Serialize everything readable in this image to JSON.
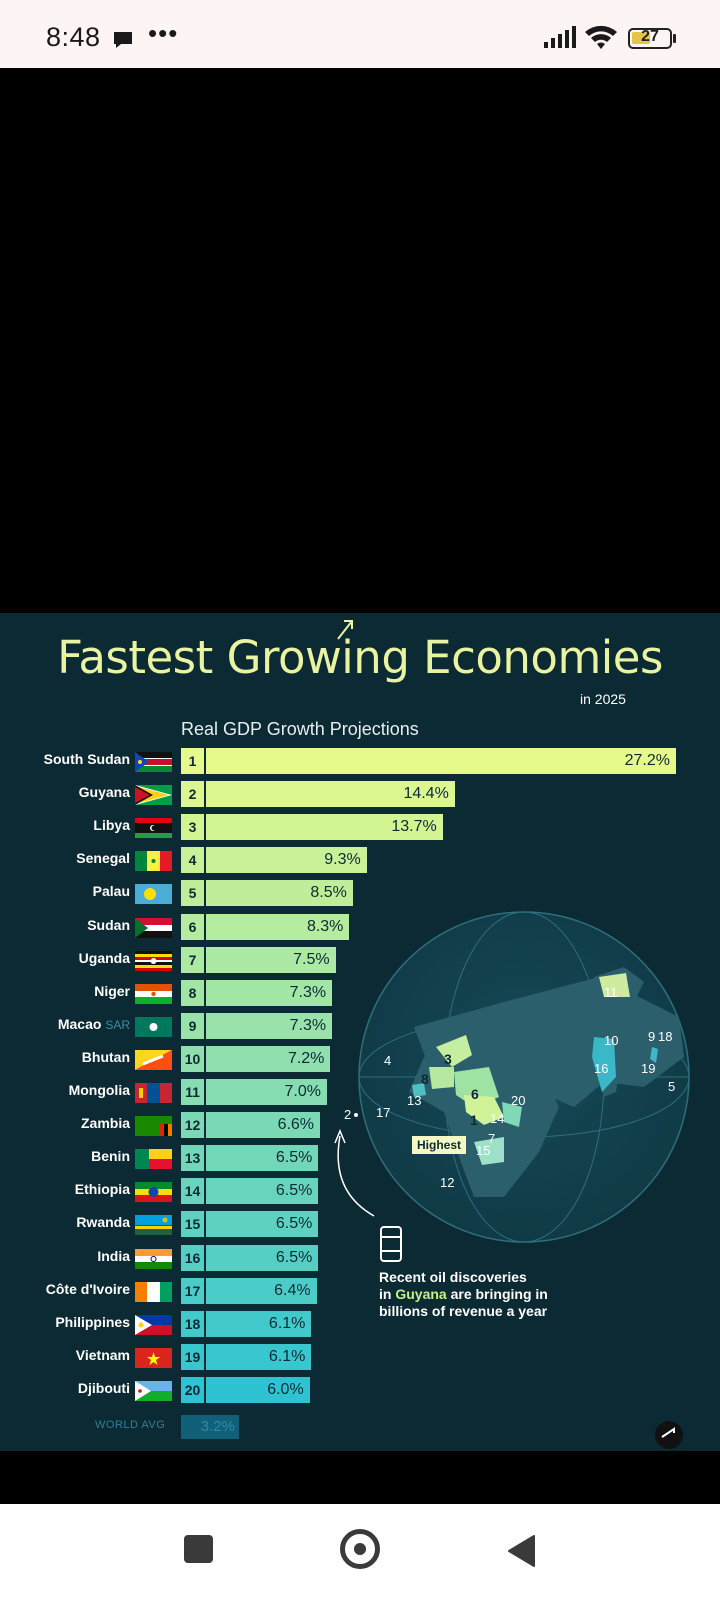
{
  "status_bar": {
    "time": "8:48",
    "more_indicator": "•••",
    "battery_level": "27"
  },
  "infographic": {
    "title": "Fastest Growing Economies",
    "subtitle": "in 2025",
    "chart_caption": "Real GDP Growth Projections",
    "highest_tag": "Highest",
    "oil_note_line1": "Recent oil discoveries",
    "oil_note_in": "in ",
    "oil_note_guyana": "Guyana",
    "oil_note_rest": " are bringing in",
    "oil_note_line3": "billions of revenue a year",
    "world_avg_label": "WORLD AVG",
    "world_avg_value": "3.2%",
    "map_labels": [
      "11",
      "10",
      "9",
      "18",
      "16",
      "19",
      "5",
      "4",
      "3",
      "8",
      "13",
      "17",
      "6",
      "20",
      "1",
      "14",
      "7",
      "15",
      "12",
      "2"
    ]
  },
  "chart_data": {
    "type": "bar",
    "title": "Fastest Growing Economies",
    "subtitle": "in 2025",
    "ylabel": "Real GDP Growth Projections",
    "categories": [
      "South Sudan",
      "Guyana",
      "Libya",
      "Senegal",
      "Palau",
      "Sudan",
      "Uganda",
      "Niger",
      "Macao SAR",
      "Bhutan",
      "Mongolia",
      "Zambia",
      "Benin",
      "Ethiopia",
      "Rwanda",
      "India",
      "Côte d'Ivoire",
      "Philippines",
      "Vietnam",
      "Djibouti"
    ],
    "values": [
      27.2,
      14.4,
      13.7,
      9.3,
      8.5,
      8.3,
      7.5,
      7.3,
      7.3,
      7.2,
      7.0,
      6.6,
      6.5,
      6.5,
      6.5,
      6.5,
      6.4,
      6.1,
      6.1,
      6.0
    ],
    "value_labels": [
      "27.2%",
      "14.4%",
      "13.7%",
      "9.3%",
      "8.5%",
      "8.3%",
      "7.5%",
      "7.3%",
      "7.3%",
      "7.2%",
      "7.0%",
      "6.6%",
      "6.5%",
      "6.5%",
      "6.5%",
      "6.5%",
      "6.4%",
      "6.1%",
      "6.1%",
      "6.0%"
    ],
    "ranks": [
      "1",
      "2",
      "3",
      "4",
      "5",
      "6",
      "7",
      "8",
      "9",
      "10",
      "11",
      "12",
      "13",
      "14",
      "15",
      "16",
      "17",
      "18",
      "19",
      "20"
    ],
    "reference": {
      "label": "WORLD AVG",
      "value": 3.2
    },
    "colors": {
      "start": "#e6fa8c",
      "end": "#2ec3d3",
      "background": "#0c2a33"
    }
  }
}
